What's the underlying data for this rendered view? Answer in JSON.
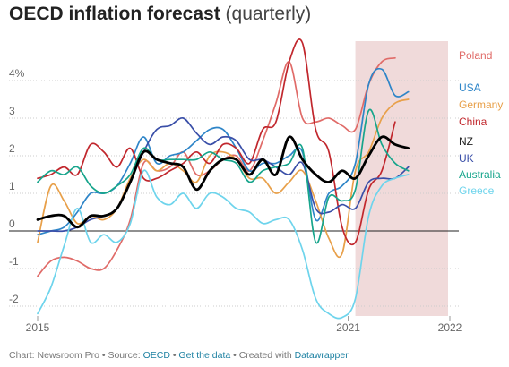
{
  "title_bold": "OECD inflation forecast",
  "title_light": "(quarterly)",
  "footer": {
    "prefix": "Chart: Newsroom Pro • Source: ",
    "source": "OECD",
    "sep1": " • ",
    "get_data": "Get the data",
    "sep2": " • Created with ",
    "tool": "Datawrapper"
  },
  "chart_data": {
    "type": "line",
    "title": "OECD inflation forecast (quarterly)",
    "xlabel": "",
    "ylabel": "",
    "x": [
      "2015Q1",
      "2015Q2",
      "2015Q3",
      "2015Q4",
      "2016Q1",
      "2016Q2",
      "2016Q3",
      "2016Q4",
      "2017Q1",
      "2017Q2",
      "2017Q3",
      "2017Q4",
      "2018Q1",
      "2018Q2",
      "2018Q3",
      "2018Q4",
      "2019Q1",
      "2019Q2",
      "2019Q3",
      "2019Q4",
      "2020Q1",
      "2020Q2",
      "2020Q3",
      "2020Q4",
      "2021Q1",
      "2021Q2",
      "2021Q3",
      "2021Q4",
      "2022Q1",
      "2022Q2",
      "2022Q3",
      "2022Q4"
    ],
    "x_tick_labels": [
      "2015",
      "2021",
      "2022"
    ],
    "ylim": [
      -2.2,
      5.0
    ],
    "y_ticks": [
      -2,
      -1,
      0,
      1,
      2,
      3,
      4
    ],
    "y_tick_labels": [
      "-2",
      "-1",
      "0",
      "1",
      "2",
      "3",
      "4%"
    ],
    "zero_line": true,
    "grid": "horizontal dotted",
    "shaded_region": {
      "from": "2021Q1",
      "to": "2022Q4",
      "color": "#f0dada"
    },
    "legend": "direct labels at right end",
    "series": [
      {
        "name": "Poland",
        "color": "#e06b68",
        "values": [
          -1.2,
          -0.8,
          -0.7,
          -0.8,
          -1.0,
          -1.0,
          -0.5,
          0.3,
          1.8,
          1.6,
          1.7,
          2.1,
          1.5,
          1.6,
          1.9,
          2.0,
          1.6,
          2.4,
          3.4,
          4.5,
          3.0,
          2.9,
          3.0,
          2.8,
          2.7,
          3.9,
          4.5,
          4.6,
          null,
          null,
          null,
          null
        ]
      },
      {
        "name": "USA",
        "color": "#2e85c8",
        "values": [
          -0.1,
          0.0,
          0.1,
          0.5,
          1.0,
          1.0,
          1.2,
          1.8,
          2.5,
          1.8,
          2.0,
          2.1,
          2.4,
          2.7,
          2.7,
          2.2,
          1.6,
          1.8,
          1.8,
          2.0,
          2.1,
          0.3,
          1.0,
          1.2,
          1.8,
          3.9,
          4.3,
          3.6,
          3.7,
          null,
          null,
          null
        ]
      },
      {
        "name": "Germany",
        "color": "#e8a04a",
        "values": [
          -0.3,
          1.2,
          0.8,
          0.2,
          0.4,
          0.3,
          0.6,
          1.4,
          1.9,
          1.6,
          1.8,
          1.6,
          1.3,
          2.0,
          2.1,
          1.9,
          1.4,
          1.4,
          1.0,
          1.3,
          1.6,
          0.8,
          -0.2,
          -0.6,
          1.6,
          2.1,
          3.0,
          3.4,
          3.5,
          null,
          null,
          null
        ]
      },
      {
        "name": "China",
        "color": "#c1272d",
        "values": [
          1.4,
          1.5,
          1.7,
          1.5,
          2.3,
          2.1,
          1.7,
          2.2,
          1.4,
          1.4,
          1.6,
          1.8,
          2.1,
          1.8,
          2.3,
          2.2,
          1.8,
          2.7,
          2.9,
          4.5,
          5.0,
          2.7,
          2.1,
          0.1,
          -0.3,
          1.1,
          1.6,
          2.9,
          null,
          null,
          null,
          null
        ]
      },
      {
        "name": "NZ",
        "color": "#000000",
        "values": [
          0.3,
          0.4,
          0.4,
          0.1,
          0.4,
          0.4,
          0.6,
          1.3,
          2.1,
          1.9,
          1.8,
          1.7,
          1.1,
          1.6,
          1.9,
          1.9,
          1.5,
          1.9,
          1.5,
          2.5,
          1.9,
          1.5,
          1.3,
          1.6,
          1.4,
          2.0,
          2.5,
          2.3,
          2.2,
          null,
          null,
          null
        ]
      },
      {
        "name": "UK",
        "color": "#3a4fa8",
        "values": [
          0.0,
          0.0,
          0.0,
          0.1,
          0.3,
          0.4,
          0.6,
          1.3,
          2.1,
          2.7,
          2.8,
          3.0,
          2.6,
          2.3,
          2.5,
          2.4,
          1.9,
          1.9,
          1.7,
          1.5,
          1.8,
          0.6,
          0.5,
          0.7,
          0.6,
          1.3,
          1.4,
          1.4,
          1.7,
          null,
          null,
          null
        ]
      },
      {
        "name": "Australia",
        "color": "#17a58c",
        "values": [
          1.3,
          1.6,
          1.5,
          1.7,
          1.2,
          1.0,
          1.2,
          1.5,
          2.2,
          1.9,
          1.9,
          1.9,
          1.9,
          2.1,
          1.9,
          1.8,
          1.3,
          1.6,
          1.7,
          1.8,
          2.2,
          -0.3,
          0.9,
          0.8,
          1.1,
          3.2,
          2.3,
          1.8,
          1.6,
          null,
          null,
          null
        ]
      },
      {
        "name": "Greece",
        "color": "#6ed4ec",
        "values": [
          -2.2,
          -1.5,
          -0.4,
          0.6,
          -0.3,
          -0.1,
          -0.3,
          0.2,
          1.6,
          0.9,
          0.7,
          1.0,
          0.6,
          1.0,
          0.9,
          0.6,
          0.5,
          0.2,
          0.3,
          0.3,
          -0.5,
          -1.8,
          -2.2,
          -2.3,
          -1.8,
          0.4,
          1.2,
          1.4,
          1.5,
          null,
          null,
          null
        ]
      }
    ]
  }
}
